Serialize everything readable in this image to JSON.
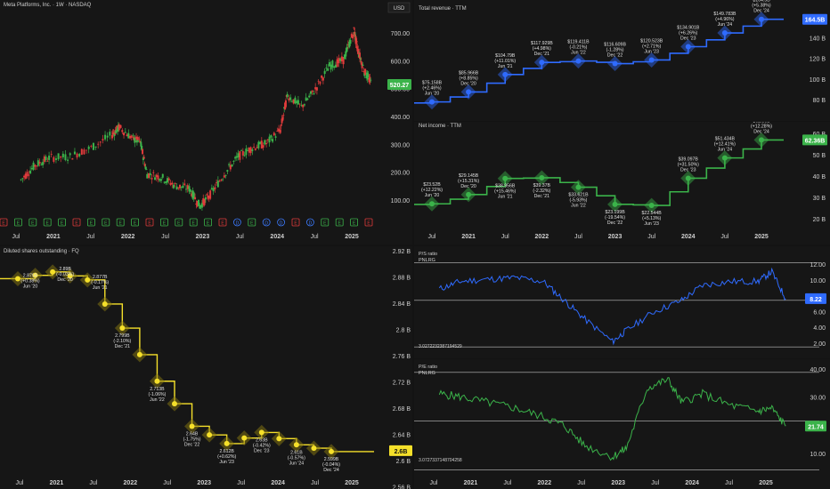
{
  "price_pane": {
    "title": "Meta Platforms, Inc. · 1W · NASDAQ",
    "currency": "USD",
    "last_price_label": "520.27",
    "y_ticks": [
      "700.00",
      "600.00",
      "500.00",
      "400.00",
      "300.00",
      "200.00",
      "100.00"
    ],
    "x_ticks": [
      "Jul",
      "2021",
      "Jul",
      "2022",
      "Jul",
      "2023",
      "Jul",
      "2024",
      "Jul",
      "2025"
    ],
    "event_markers": [
      "E",
      "E",
      "E",
      "E",
      "E",
      "E",
      "E",
      "E",
      "E",
      "E",
      "E",
      "E",
      "E",
      "E",
      "E",
      "E",
      "D",
      "E",
      "D",
      "D",
      "E",
      "D",
      "E",
      "E",
      "E",
      "E"
    ]
  },
  "revenue_pane": {
    "title": "Total revenue · TTM",
    "last_value_label": "164.5B",
    "y_ticks": [
      "160 B",
      "140 B",
      "120 B",
      "100 B",
      "80 B"
    ],
    "annotations": [
      {
        "value": "$75.158B",
        "change": "(+2.46%)",
        "period": "Jun '20"
      },
      {
        "value": "$85.966B",
        "change": "(+8.85%)",
        "period": "Dec '20"
      },
      {
        "value": "$104.79B",
        "change": "(+11.01%)",
        "period": "Jun '21"
      },
      {
        "value": "$117.929B",
        "change": "(+4.98%)",
        "period": "Dec '21"
      },
      {
        "value": "$119.411B",
        "change": "(-0.21%)",
        "period": "Jun '22"
      },
      {
        "value": "$116.609B",
        "change": "(-1.28%)",
        "period": "Dec '22"
      },
      {
        "value": "$120.523B",
        "change": "(+2.71%)",
        "period": "Jun '23"
      },
      {
        "value": "$134.901B",
        "change": "(+6.26%)",
        "period": "Dec '23"
      },
      {
        "value": "$149.783B",
        "change": "(+4.96%)",
        "period": "Jun '24"
      },
      {
        "value": "$164.5B",
        "change": "(+5.38%)",
        "period": "Dec '24"
      }
    ]
  },
  "income_pane": {
    "title": "Net income · TTM",
    "last_value_label": "62.36B",
    "y_ticks": [
      "60 B",
      "50 B",
      "40 B",
      "30 B",
      "20 B"
    ],
    "x_ticks": [
      "Jul",
      "2021",
      "Jul",
      "2022",
      "Jul",
      "2023",
      "Jul",
      "2024",
      "Jul",
      "2025"
    ],
    "annotations": [
      {
        "value": "$23.52B",
        "change": "(+12.22%)",
        "period": "Jun '20"
      },
      {
        "value": "$29.145B",
        "change": "(+15.31%)",
        "period": "Dec '20"
      },
      {
        "value": "$38.956B",
        "change": "(+15.46%)",
        "period": "Jun '21"
      },
      {
        "value": "$39.37B",
        "change": "(-2.32%)",
        "period": "Dec '21"
      },
      {
        "value": "$33.621B",
        "change": "(-5.93%)",
        "period": "Jun '22"
      },
      {
        "value": "$23.199B",
        "change": "(-19.54%)",
        "period": "Dec '22"
      },
      {
        "value": "$22.544B",
        "change": "(+5.13%)",
        "period": "Jun '23"
      },
      {
        "value": "$39.097B",
        "change": "(+31.50%)",
        "period": "Dec '23"
      },
      {
        "value": "$51.434B",
        "change": "(+12.41%)",
        "period": "Jun '24"
      },
      {
        "value": "$62.36B",
        "change": "(+12.28%)",
        "period": "Dec '24"
      }
    ]
  },
  "shares_pane": {
    "title": "Diluted shares outstanding · FQ",
    "last_value_label": "2.6B",
    "y_ticks": [
      "2.92 B",
      "2.88 B",
      "2.84 B",
      "2.8 B",
      "2.76 B",
      "2.72 B",
      "2.68 B",
      "2.64 B",
      "2.6 B",
      "2.56 B"
    ],
    "x_ticks": [
      "Jul",
      "2021",
      "Jul",
      "2022",
      "Jul",
      "2023",
      "Jul",
      "2024",
      "Jul",
      "2025"
    ],
    "annotations": [
      {
        "value": "2.879B",
        "change": "(+0.38%)",
        "period": "Jun '20"
      },
      {
        "value": "2.89B",
        "change": "(-0.03%)",
        "period": "Dec '20"
      },
      {
        "value": "2.877B",
        "change": "(-0.17%)",
        "period": "Jun '21"
      },
      {
        "value": "2.799B",
        "change": "(-2.10%)",
        "period": "Dec '21"
      },
      {
        "value": "2.713B",
        "change": "(-1.06%)",
        "period": "Jun '22"
      },
      {
        "value": "2.64B",
        "change": "(-1.75%)",
        "period": "Dec '22"
      },
      {
        "value": "2.612B",
        "change": "(+0.62%)",
        "period": "Jun '23"
      },
      {
        "value": "2.63B",
        "change": "(-0.42%)",
        "period": "Dec '23"
      },
      {
        "value": "2.61B",
        "change": "(-0.57%)",
        "period": "Jun '24"
      },
      {
        "value": "2.599B",
        "change": "(-0.04%)",
        "period": "Dec '24"
      }
    ]
  },
  "ps_pane": {
    "title": "P/S ratio",
    "symbol": "PNLRG",
    "last_value_label": "8.22",
    "y_ticks": [
      "12.00",
      "10.00",
      "8.00",
      "6.00",
      "4.00",
      "2.00"
    ],
    "band_label": "3.0272232387194529"
  },
  "pe_pane": {
    "title": "P/E ratio",
    "symbol": "PNLRG",
    "last_value_label": "21.74",
    "y_ticks": [
      "40.00",
      "30.00",
      "20.00",
      "10.00"
    ],
    "band_label": "3.0727337148704258",
    "x_ticks": [
      "Jul",
      "2021",
      "Jul",
      "2022",
      "Jul",
      "2023",
      "Jul",
      "2024",
      "Jul",
      "2025"
    ]
  },
  "chart_data": [
    {
      "type": "line",
      "title": "Meta Platforms, Inc. · 1W · NASDAQ",
      "x": [
        2020.3,
        2020.5,
        2020.7,
        2021.0,
        2021.3,
        2021.6,
        2021.7,
        2021.9,
        2022.0,
        2022.1,
        2022.3,
        2022.5,
        2022.7,
        2022.85,
        2023.0,
        2023.2,
        2023.4,
        2023.6,
        2023.8,
        2024.0,
        2024.1,
        2024.3,
        2024.5,
        2024.7,
        2024.9,
        2025.05,
        2025.1,
        2025.2,
        2025.3
      ],
      "values": [
        190,
        240,
        265,
        270,
        300,
        345,
        370,
        330,
        320,
        210,
        200,
        170,
        160,
        100,
        140,
        210,
        270,
        300,
        315,
        360,
        480,
        440,
        500,
        580,
        600,
        700,
        640,
        560,
        520
      ],
      "ylim": [
        60,
        760
      ]
    },
    {
      "type": "line",
      "title": "Total revenue · TTM",
      "x": [
        "Jun '20",
        "Dec '20",
        "Jun '21",
        "Dec '21",
        "Jun '22",
        "Dec '22",
        "Jun '23",
        "Dec '23",
        "Jun '24",
        "Dec '24"
      ],
      "values": [
        75.158,
        85.966,
        104.79,
        117.929,
        119.411,
        116.609,
        120.523,
        134.901,
        149.783,
        164.5
      ],
      "ylim": [
        70,
        170
      ]
    },
    {
      "type": "line",
      "title": "Net income · TTM",
      "x": [
        "Jun '20",
        "Dec '20",
        "Jun '21",
        "Dec '21",
        "Jun '22",
        "Dec '22",
        "Jun '23",
        "Dec '23",
        "Jun '24",
        "Dec '24"
      ],
      "values": [
        23.52,
        29.145,
        38.956,
        39.37,
        33.621,
        23.199,
        22.544,
        39.097,
        51.434,
        62.36
      ],
      "ylim": [
        15,
        68
      ]
    },
    {
      "type": "line",
      "title": "Diluted shares outstanding · FQ",
      "x": [
        "Jun '20",
        "Dec '20",
        "Jun '21",
        "Dec '21",
        "Jun '22",
        "Dec '22",
        "Jun '23",
        "Dec '23",
        "Jun '24",
        "Dec '24"
      ],
      "values": [
        2.879,
        2.89,
        2.877,
        2.799,
        2.713,
        2.64,
        2.612,
        2.63,
        2.61,
        2.599
      ],
      "ylim": [
        2.56,
        2.92
      ]
    },
    {
      "type": "line",
      "title": "P/S ratio",
      "x": [
        2020.3,
        2020.6,
        2021.0,
        2021.4,
        2021.8,
        2022.1,
        2022.4,
        2022.8,
        2023.0,
        2023.4,
        2023.8,
        2024.1,
        2024.5,
        2024.9,
        2025.1,
        2025.3
      ],
      "values": [
        9.5,
        10.5,
        10.8,
        11.0,
        10.5,
        8.0,
        5.5,
        2.5,
        4.0,
        6.5,
        8.0,
        10.0,
        10.5,
        10.5,
        11.8,
        8.22
      ],
      "ylim": [
        1,
        14
      ]
    },
    {
      "type": "line",
      "title": "P/E ratio",
      "x": [
        2020.3,
        2020.6,
        2021.0,
        2021.4,
        2021.8,
        2022.1,
        2022.4,
        2022.8,
        2023.0,
        2023.3,
        2023.6,
        2023.8,
        2024.1,
        2024.5,
        2024.9,
        2025.1,
        2025.3
      ],
      "values": [
        33,
        32,
        30,
        28,
        25,
        22,
        15,
        11,
        14,
        35,
        38,
        30,
        33,
        29,
        27,
        28,
        21.74
      ],
      "ylim": [
        6,
        42
      ]
    }
  ]
}
